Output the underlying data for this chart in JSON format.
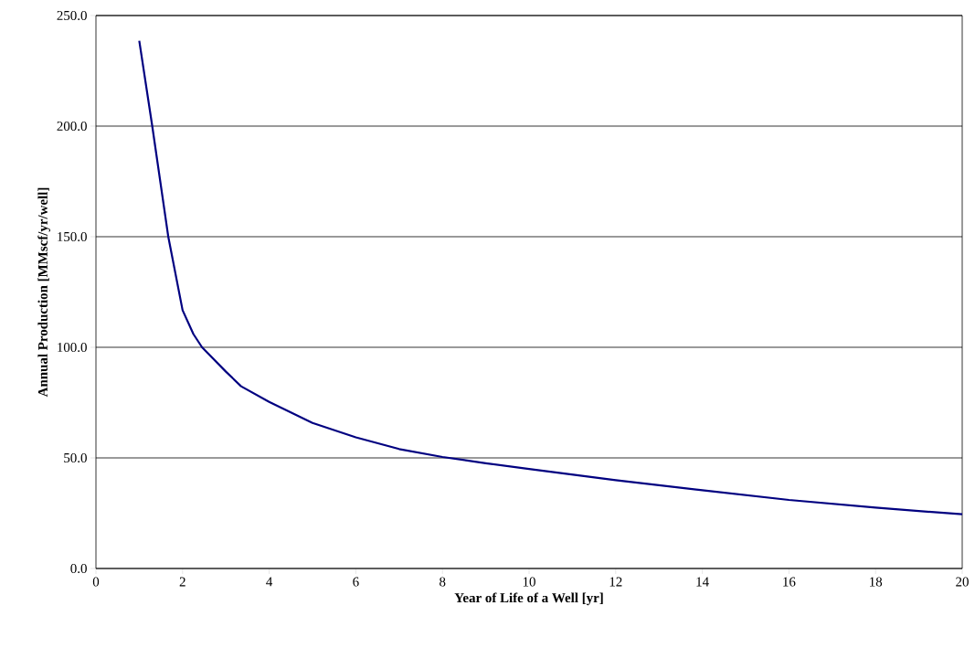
{
  "chart_data": {
    "type": "line",
    "xlabel": "Year of Life of a Well [yr]",
    "ylabel": "Annual Production [MMscf/yr/well]",
    "x": [
      1,
      1.3,
      1.67,
      2,
      2.25,
      2.45,
      3,
      3.35,
      4,
      5,
      6,
      7,
      8,
      9,
      10,
      12,
      14,
      16,
      18,
      20
    ],
    "series": [
      {
        "color": "#000080",
        "values": [
          238.6,
          200,
          150,
          116.8,
          106,
          100,
          89,
          82.4,
          75.3,
          65.8,
          59.3,
          54,
          50.4,
          47.6,
          45,
          39.9,
          35.4,
          31,
          27.5,
          24.5
        ]
      }
    ],
    "xlim": [
      0,
      20
    ],
    "ylim": [
      0,
      250
    ],
    "xticks": [
      0,
      2,
      4,
      6,
      8,
      10,
      12,
      14,
      16,
      18,
      20
    ],
    "yticks": [
      {
        "value": 0,
        "label": "0.0"
      },
      {
        "value": 50,
        "label": "50.0"
      },
      {
        "value": 100,
        "label": "100.0"
      },
      {
        "value": 150,
        "label": "150.0"
      },
      {
        "value": 200,
        "label": "200.0"
      },
      {
        "value": 250,
        "label": "250.0"
      }
    ],
    "grid": "y",
    "marker": "none",
    "line_style": "solid"
  }
}
